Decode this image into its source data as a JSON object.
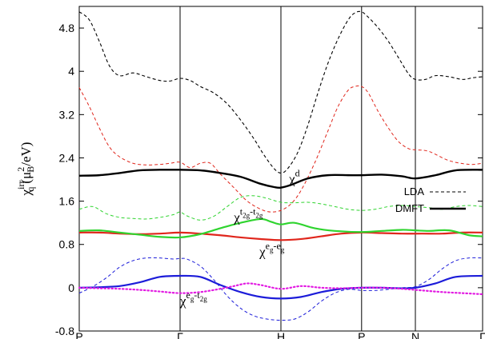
{
  "chart_data": {
    "type": "line",
    "ylabel_main": "χ",
    "ylabel_sub": "q",
    "ylabel_sup": "irr",
    "ylabel_paren": "(μ",
    "ylabel_paren_sub": "B",
    "ylabel_paren_sup": "2",
    "ylabel_tail": "/eV)",
    "xlim": [
      0,
      6
    ],
    "ylim": [
      -0.8,
      5.2
    ],
    "grid": false,
    "x_tick_labels": [
      {
        "x": 0,
        "label": "P"
      },
      {
        "x": 1.5,
        "label": "Γ"
      },
      {
        "x": 3,
        "label": "H"
      },
      {
        "x": 4.2,
        "label": "P"
      },
      {
        "x": 5,
        "label": "N"
      },
      {
        "x": 6,
        "label": "Γ"
      }
    ],
    "y_ticks": [
      -0.8,
      0,
      0.8,
      1.6,
      2.4,
      3.2,
      4,
      4.8
    ],
    "y_tick_labels": [
      "-0.8",
      "0",
      "0.8",
      "1.6",
      "2.4",
      "3.2",
      "4",
      "4.8"
    ],
    "legend": {
      "placement": "right",
      "entries": [
        {
          "label": "LDA",
          "style": "dashed"
        },
        {
          "label": "DMFT",
          "style": "solid"
        }
      ]
    },
    "annotations": [
      {
        "id": "chi-d",
        "base": "χ",
        "sup": "d",
        "sup_sub": "",
        "x": 3.12,
        "y": 1.93
      },
      {
        "id": "chi-t2g-t2g",
        "base": "χ",
        "sup": "t",
        "sup_sub": "2g",
        "sup2": "-t",
        "sup2_sub": "2g",
        "x": 2.3,
        "y": 1.22
      },
      {
        "id": "chi-eg-eg",
        "base": "χ",
        "sup": "e",
        "sup_sub": "g",
        "sup2": "-e",
        "sup2_sub": "g",
        "x": 2.68,
        "y": 0.58
      },
      {
        "id": "chi-eg-t2g",
        "base": "χ",
        "sup": "e",
        "sup_sub": "g",
        "sup2": "-t",
        "sup2_sub": "2g",
        "x": 1.5,
        "y": -0.33
      }
    ],
    "series": [
      {
        "id": "d",
        "method": "LDA",
        "color": "#000000",
        "dash": true,
        "width": 1.1,
        "x": [
          0,
          0.15,
          0.3,
          0.45,
          0.6,
          0.8,
          1.0,
          1.2,
          1.35,
          1.5,
          1.65,
          1.8,
          2.0,
          2.2,
          2.4,
          2.6,
          2.75,
          2.9,
          3.0,
          3.1,
          3.25,
          3.4,
          3.55,
          3.7,
          3.85,
          4.0,
          4.1,
          4.2,
          4.3,
          4.45,
          4.6,
          4.75,
          4.9,
          5.0,
          5.15,
          5.3,
          5.5,
          5.7,
          5.85,
          6.0
        ],
        "y": [
          5.1,
          4.95,
          4.55,
          4.1,
          3.92,
          3.97,
          3.9,
          3.83,
          3.82,
          3.87,
          3.83,
          3.72,
          3.6,
          3.4,
          3.1,
          2.75,
          2.45,
          2.2,
          2.12,
          2.2,
          2.5,
          3.0,
          3.6,
          4.15,
          4.6,
          4.95,
          5.08,
          5.1,
          5.0,
          4.8,
          4.55,
          4.25,
          3.95,
          3.85,
          3.85,
          3.92,
          3.9,
          3.85,
          3.88,
          3.9
        ]
      },
      {
        "id": "eg-eg",
        "method": "LDA",
        "color": "#e0261c",
        "dash": true,
        "width": 1.0,
        "x": [
          0,
          0.15,
          0.3,
          0.45,
          0.6,
          0.8,
          1.0,
          1.2,
          1.35,
          1.5,
          1.65,
          1.8,
          1.95,
          2.1,
          2.3,
          2.5,
          2.7,
          2.85,
          3.0,
          3.15,
          3.3,
          3.5,
          3.7,
          3.85,
          4.0,
          4.1,
          4.2,
          4.3,
          4.45,
          4.6,
          4.75,
          4.9,
          5.0,
          5.2,
          5.5,
          5.8,
          6.0
        ],
        "y": [
          3.7,
          3.35,
          2.95,
          2.6,
          2.42,
          2.3,
          2.27,
          2.28,
          2.3,
          2.32,
          2.22,
          2.3,
          2.3,
          2.1,
          1.85,
          1.6,
          1.45,
          1.4,
          1.43,
          1.55,
          1.8,
          2.3,
          2.9,
          3.35,
          3.65,
          3.72,
          3.72,
          3.6,
          3.25,
          2.95,
          2.7,
          2.57,
          2.55,
          2.52,
          2.35,
          2.28,
          2.3
        ]
      },
      {
        "id": "t2g-t2g",
        "method": "LDA",
        "color": "#2fd42f",
        "dash": true,
        "width": 1.0,
        "x": [
          0,
          0.2,
          0.4,
          0.6,
          0.8,
          1.0,
          1.2,
          1.4,
          1.5,
          1.6,
          1.8,
          2.0,
          2.2,
          2.4,
          2.6,
          2.8,
          3.0,
          3.2,
          3.4,
          3.6,
          3.8,
          4.0,
          4.2,
          4.4,
          4.6,
          4.8,
          5.0,
          5.2,
          5.4,
          5.6,
          5.8,
          6.0
        ],
        "y": [
          1.45,
          1.5,
          1.37,
          1.3,
          1.28,
          1.27,
          1.3,
          1.35,
          1.4,
          1.33,
          1.25,
          1.32,
          1.5,
          1.67,
          1.7,
          1.65,
          1.58,
          1.57,
          1.58,
          1.55,
          1.5,
          1.45,
          1.43,
          1.45,
          1.5,
          1.52,
          1.5,
          1.48,
          1.45,
          1.5,
          1.52,
          1.5
        ]
      },
      {
        "id": "eg-t2g",
        "method": "LDA",
        "color": "#1c1cd9",
        "dash": true,
        "width": 1.0,
        "x": [
          0,
          0.2,
          0.4,
          0.6,
          0.8,
          1.0,
          1.2,
          1.4,
          1.5,
          1.6,
          1.8,
          2.0,
          2.2,
          2.4,
          2.6,
          2.8,
          3.0,
          3.2,
          3.4,
          3.6,
          3.8,
          4.0,
          4.2,
          4.4,
          4.6,
          4.8,
          5.0,
          5.2,
          5.4,
          5.6,
          5.8,
          6.0
        ],
        "y": [
          -0.1,
          0.02,
          0.18,
          0.38,
          0.5,
          0.55,
          0.55,
          0.53,
          0.54,
          0.53,
          0.4,
          0.15,
          -0.15,
          -0.38,
          -0.52,
          -0.58,
          -0.6,
          -0.58,
          -0.45,
          -0.25,
          -0.1,
          -0.03,
          -0.05,
          -0.05,
          -0.03,
          0.0,
          0.02,
          0.15,
          0.35,
          0.5,
          0.55,
          0.55
        ]
      },
      {
        "id": "d",
        "method": "DMFT",
        "color": "#000000",
        "dash": false,
        "width": 2.4,
        "x": [
          0,
          0.3,
          0.6,
          0.9,
          1.2,
          1.5,
          1.8,
          2.1,
          2.4,
          2.7,
          2.9,
          3.0,
          3.15,
          3.4,
          3.7,
          4.0,
          4.2,
          4.5,
          4.8,
          5.0,
          5.3,
          5.6,
          6.0
        ],
        "y": [
          2.07,
          2.08,
          2.12,
          2.17,
          2.18,
          2.18,
          2.17,
          2.12,
          2.05,
          1.92,
          1.86,
          1.85,
          1.9,
          2.02,
          2.08,
          2.08,
          2.08,
          2.09,
          2.06,
          2.02,
          2.08,
          2.17,
          2.18
        ]
      },
      {
        "id": "eg-eg",
        "method": "DMFT",
        "color": "#e0261c",
        "dash": false,
        "width": 2.2,
        "x": [
          0,
          0.3,
          0.6,
          0.9,
          1.2,
          1.5,
          1.8,
          2.1,
          2.4,
          2.7,
          3.0,
          3.3,
          3.6,
          3.9,
          4.2,
          4.5,
          4.8,
          5.1,
          5.4,
          5.7,
          6.0
        ],
        "y": [
          1.02,
          1.02,
          1.0,
          0.99,
          1.0,
          1.02,
          1.0,
          0.97,
          0.93,
          0.9,
          0.88,
          0.9,
          0.95,
          1.0,
          1.02,
          1.01,
          1.0,
          1.0,
          1.0,
          1.02,
          1.02
        ]
      },
      {
        "id": "t2g-t2g",
        "method": "DMFT",
        "color": "#2fd42f",
        "dash": false,
        "width": 2.2,
        "x": [
          0,
          0.3,
          0.6,
          0.9,
          1.2,
          1.5,
          1.8,
          2.1,
          2.4,
          2.7,
          2.85,
          3.0,
          3.2,
          3.5,
          3.8,
          4.2,
          4.5,
          4.8,
          5.0,
          5.2,
          5.5,
          5.8,
          6.0
        ],
        "y": [
          1.05,
          1.06,
          1.02,
          0.98,
          0.94,
          0.93,
          0.99,
          1.1,
          1.2,
          1.27,
          1.22,
          1.17,
          1.2,
          1.1,
          1.05,
          1.03,
          1.05,
          1.07,
          1.06,
          1.05,
          1.06,
          0.97,
          0.95
        ]
      },
      {
        "id": "eg-t2g",
        "method": "DMFT",
        "color": "#1c1cd9",
        "dash": false,
        "width": 2.2,
        "x": [
          0,
          0.3,
          0.6,
          0.9,
          1.2,
          1.5,
          1.8,
          2.1,
          2.4,
          2.7,
          3.0,
          3.3,
          3.6,
          3.9,
          4.2,
          4.5,
          4.8,
          5.0,
          5.3,
          5.6,
          6.0
        ],
        "y": [
          0.0,
          0.01,
          0.03,
          0.1,
          0.2,
          0.22,
          0.2,
          0.05,
          -0.08,
          -0.17,
          -0.2,
          -0.17,
          -0.08,
          -0.02,
          0.0,
          0.0,
          -0.01,
          0.0,
          0.08,
          0.2,
          0.22
        ]
      },
      {
        "id": "dotted",
        "method": "DMFT",
        "color": "#e21ae2",
        "dash": "dot",
        "width": 2.2,
        "x": [
          0,
          0.3,
          0.6,
          0.9,
          1.2,
          1.5,
          1.8,
          2.1,
          2.3,
          2.5,
          2.7,
          3.0,
          3.3,
          3.6,
          3.9,
          4.2,
          4.5,
          4.8,
          5.1,
          5.4,
          5.7,
          6.0
        ],
        "y": [
          0.0,
          -0.01,
          -0.02,
          -0.04,
          -0.07,
          -0.1,
          -0.08,
          -0.02,
          0.03,
          0.08,
          0.05,
          -0.02,
          0.03,
          0.0,
          -0.01,
          0.0,
          0.0,
          -0.02,
          -0.05,
          -0.08,
          -0.1,
          -0.12
        ]
      }
    ]
  }
}
